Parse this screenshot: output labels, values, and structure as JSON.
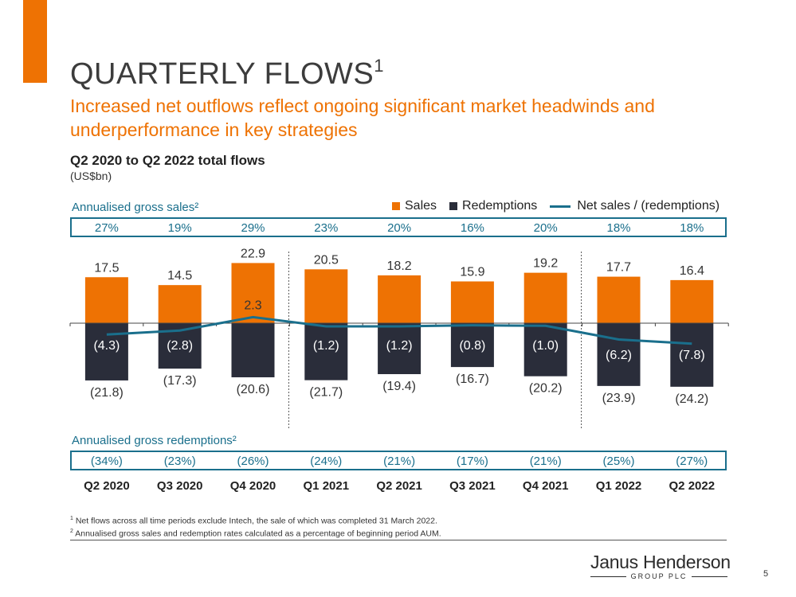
{
  "slide": {
    "title": "QUARTERLY FLOWS",
    "title_sup": "1",
    "subtitle": "Increased net outflows reflect ongoing significant market headwinds and underperformance in key strategies",
    "page_number": "5"
  },
  "chart_data": {
    "type": "bar",
    "title": "Q2 2020 to Q2 2022 total flows",
    "unit": "(US$bn)",
    "categories": [
      "Q2 2020",
      "Q3 2020",
      "Q4 2020",
      "Q1 2021",
      "Q2 2021",
      "Q3 2021",
      "Q4 2021",
      "Q1 2022",
      "Q2 2022"
    ],
    "series": [
      {
        "name": "Sales",
        "type": "bar",
        "color": "#ee7203",
        "values": [
          17.5,
          14.5,
          22.9,
          20.5,
          18.2,
          15.9,
          19.2,
          17.7,
          16.4
        ],
        "labels": [
          "17.5",
          "14.5",
          "22.9",
          "20.5",
          "18.2",
          "15.9",
          "19.2",
          "17.7",
          "16.4"
        ]
      },
      {
        "name": "Redemptions",
        "type": "bar",
        "color": "#2a2d3a",
        "values": [
          -21.8,
          -17.3,
          -20.6,
          -21.7,
          -19.4,
          -16.7,
          -20.2,
          -23.9,
          -24.2
        ],
        "labels": [
          "(21.8)",
          "(17.3)",
          "(20.6)",
          "(21.7)",
          "(19.4)",
          "(16.7)",
          "(20.2)",
          "(23.9)",
          "(24.2)"
        ]
      },
      {
        "name": "Net sales / (redemptions)",
        "type": "line",
        "color": "#1a6f8c",
        "values": [
          -4.3,
          -2.8,
          2.3,
          -1.2,
          -1.2,
          -0.8,
          -1.0,
          -6.2,
          -7.8
        ],
        "labels": [
          "(4.3)",
          "(2.8)",
          "2.3",
          "(1.2)",
          "(1.2)",
          "(0.8)",
          "(1.0)",
          "(6.2)",
          "(7.8)"
        ]
      }
    ],
    "annualised_gross_sales": {
      "label": "Annualised gross sales²",
      "values": [
        "27%",
        "19%",
        "29%",
        "23%",
        "20%",
        "16%",
        "20%",
        "18%",
        "18%"
      ]
    },
    "annualised_gross_redemptions": {
      "label": "Annualised gross redemptions²",
      "values": [
        "(34%)",
        "(23%)",
        "(26%)",
        "(24%)",
        "(21%)",
        "(17%)",
        "(21%)",
        "(25%)",
        "(27%)"
      ]
    },
    "legend_position": "top-right",
    "ylim": [
      -26,
      25
    ]
  },
  "footnotes": [
    {
      "sup": "1",
      "text": "Net flows across all time periods exclude Intech, the sale of which was completed 31 March 2022."
    },
    {
      "sup": "2",
      "text": "Annualised gross sales and redemption rates calculated as a percentage of beginning period AUM."
    }
  ],
  "logo": {
    "name": "Janus Henderson",
    "sub": "GROUP PLC"
  }
}
